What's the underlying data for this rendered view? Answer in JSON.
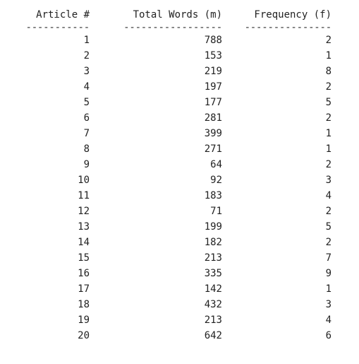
{
  "table": {
    "headers": [
      "Article #",
      "Total Words (m)",
      "Frequency (f)"
    ],
    "separators": [
      "-----------",
      "-----------------",
      "---------------"
    ],
    "rows": [
      [
        "1",
        "788",
        "2"
      ],
      [
        "2",
        "153",
        "1"
      ],
      [
        "3",
        "219",
        "8"
      ],
      [
        "4",
        "197",
        "2"
      ],
      [
        "5",
        "177",
        "5"
      ],
      [
        "6",
        "281",
        "2"
      ],
      [
        "7",
        "399",
        "1"
      ],
      [
        "8",
        "271",
        "1"
      ],
      [
        "9",
        "64",
        "2"
      ],
      [
        "10",
        "92",
        "3"
      ],
      [
        "11",
        "183",
        "4"
      ],
      [
        "12",
        "71",
        "2"
      ],
      [
        "13",
        "199",
        "5"
      ],
      [
        "14",
        "182",
        "2"
      ],
      [
        "15",
        "213",
        "7"
      ],
      [
        "16",
        "335",
        "9"
      ],
      [
        "17",
        "142",
        "1"
      ],
      [
        "18",
        "432",
        "3"
      ],
      [
        "19",
        "213",
        "4"
      ],
      [
        "20",
        "642",
        "6"
      ]
    ]
  }
}
